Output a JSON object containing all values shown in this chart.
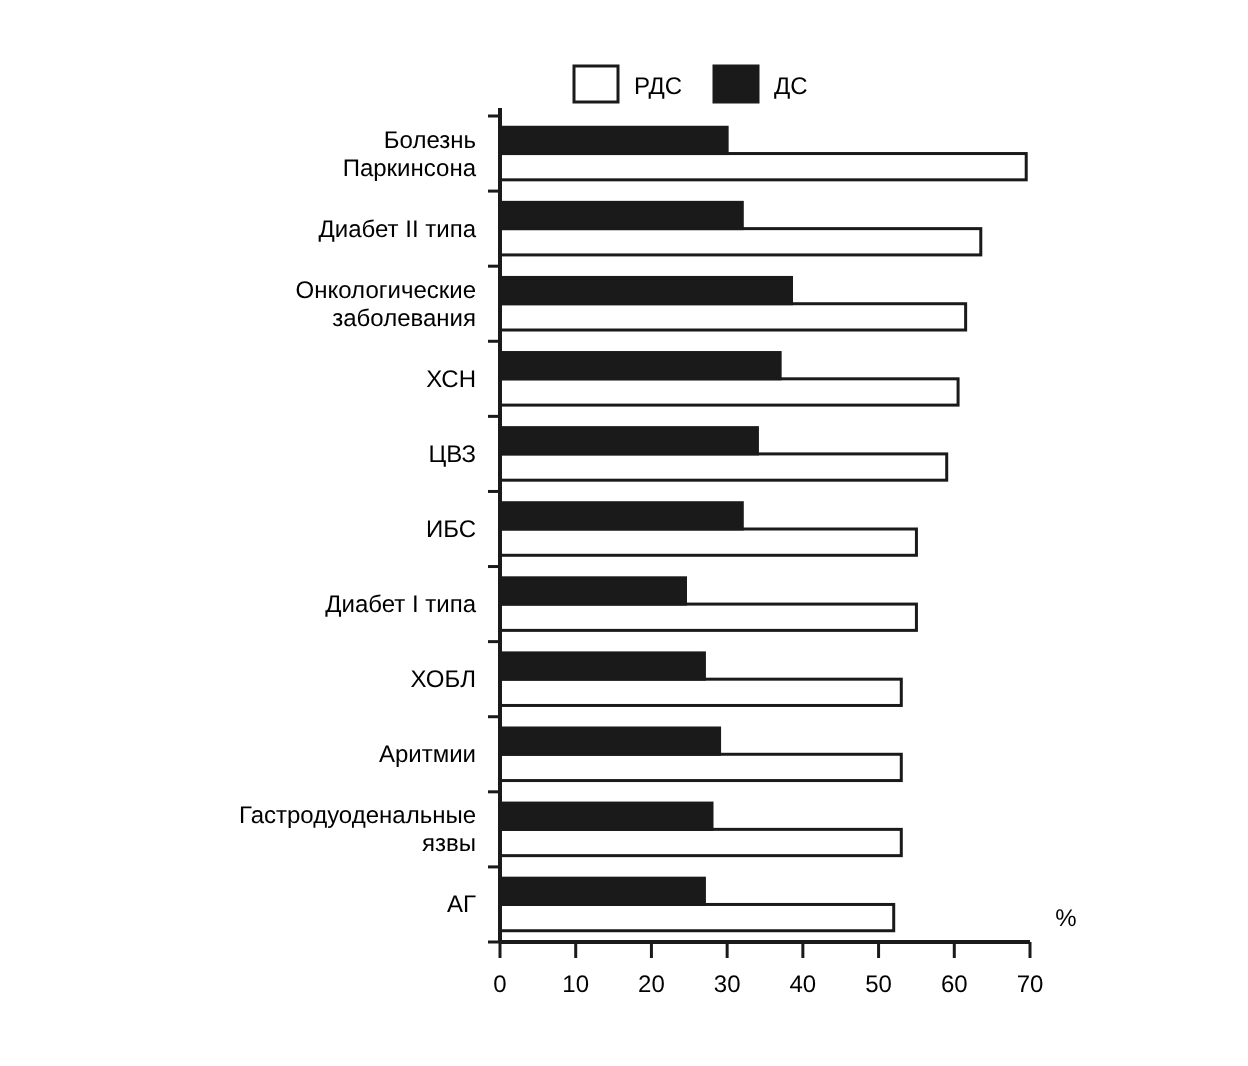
{
  "chart_data": {
    "type": "bar",
    "orientation": "horizontal",
    "xlabel": "%",
    "categories": [
      "Болезнь\nПаркинсона",
      "Диабет II типа",
      "Онкологические\nзаболевания",
      "ХСН",
      "ЦВЗ",
      "ИБС",
      "Диабет I типа",
      "ХОБЛ",
      "Аритмии",
      "Гастродуоденальные\nязвы",
      "АГ"
    ],
    "series": [
      {
        "name": "РДС",
        "color": "#ffffff",
        "values": [
          69.5,
          63.5,
          61.5,
          60.5,
          59,
          55,
          55,
          53,
          53,
          53,
          52
        ]
      },
      {
        "name": "ДС",
        "color": "#1a1a1a",
        "values": [
          30,
          32,
          38.5,
          37,
          34,
          32,
          24.5,
          27,
          29,
          28,
          27
        ]
      }
    ],
    "xlim": [
      0,
      70
    ],
    "xticks": [
      0,
      10,
      20,
      30,
      40,
      50,
      60,
      70
    ],
    "grid": false,
    "legend": "top"
  }
}
